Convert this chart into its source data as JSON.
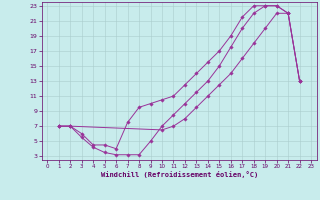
{
  "xlabel": "Windchill (Refroidissement éolien,°C)",
  "bg_color": "#c8ecec",
  "grid_color": "#aacccc",
  "line_color": "#993399",
  "marker_color": "#993399",
  "axis_color": "#660066",
  "xlim": [
    -0.5,
    23.5
  ],
  "ylim": [
    2.5,
    23.5
  ],
  "xticks": [
    0,
    1,
    2,
    3,
    4,
    5,
    6,
    7,
    8,
    9,
    10,
    11,
    12,
    13,
    14,
    15,
    16,
    17,
    18,
    19,
    20,
    21,
    22,
    23
  ],
  "yticks": [
    3,
    5,
    7,
    9,
    11,
    13,
    15,
    17,
    19,
    21,
    23
  ],
  "curve1_x": [
    1,
    2,
    3,
    4,
    5,
    6,
    7,
    8,
    9,
    10,
    11,
    12,
    13,
    14,
    15,
    16,
    17,
    18,
    19,
    20,
    21,
    22
  ],
  "curve1_y": [
    7,
    7,
    5.5,
    4.2,
    3.5,
    3.2,
    3.2,
    3.2,
    5,
    7,
    8.5,
    10,
    11.5,
    13,
    15,
    17.5,
    20,
    22,
    23,
    23,
    22,
    13
  ],
  "curve2_x": [
    1,
    2,
    3,
    4,
    5,
    6,
    7,
    8,
    9,
    10,
    11,
    12,
    13,
    14,
    15,
    16,
    17,
    18,
    19,
    20,
    21,
    22
  ],
  "curve2_y": [
    7,
    7,
    6,
    4.5,
    4.5,
    4,
    7.5,
    9.5,
    10,
    10.5,
    11,
    12.5,
    14,
    15.5,
    17,
    19,
    21.5,
    23,
    23,
    23,
    22,
    13
  ],
  "curve3_x": [
    1,
    2,
    10,
    11,
    12,
    13,
    14,
    15,
    16,
    17,
    18,
    19,
    20,
    21,
    22
  ],
  "curve3_y": [
    7,
    7,
    6.5,
    7,
    8,
    9.5,
    11,
    12.5,
    14,
    16,
    18,
    20,
    22,
    22,
    13
  ]
}
